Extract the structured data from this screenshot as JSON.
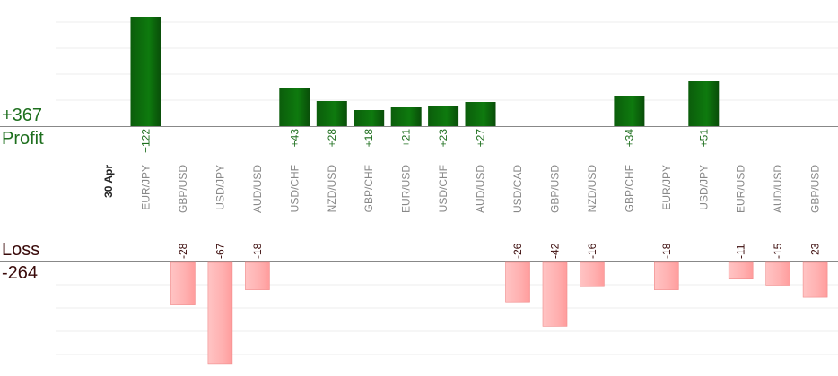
{
  "summary": {
    "profit_total": "+367",
    "profit_label": "Profit",
    "loss_label": "Loss",
    "loss_total": "-264"
  },
  "chart_data": {
    "type": "bar",
    "title": "",
    "date_label": "30 Apr",
    "categories": [
      "EUR/JPY",
      "GBP/USD",
      "USD/JPY",
      "AUD/USD",
      "USD/CHF",
      "NZD/USD",
      "GBP/CHF",
      "EUR/USD",
      "USD/CHF",
      "AUD/USD",
      "USD/CAD",
      "GBP/USD",
      "NZD/USD",
      "GBP/CHF",
      "EUR/JPY",
      "USD/JPY",
      "EUR/USD",
      "AUD/USD",
      "GBP/USD"
    ],
    "values": [
      122,
      -28,
      -67,
      -18,
      43,
      28,
      18,
      21,
      23,
      27,
      -26,
      -42,
      -16,
      34,
      -18,
      51,
      -11,
      -15,
      -23
    ],
    "data_labels": [
      "+122",
      "-28",
      "-67",
      "-18",
      "+43",
      "+28",
      "+18",
      "+21",
      "+23",
      "+27",
      "-26",
      "-42",
      "-16",
      "+34",
      "-18",
      "+51",
      "-11",
      "-15",
      "-23"
    ],
    "profit_color": "#0e6a0e",
    "loss_color": "#ffb6b6",
    "profit_text_color": "#1e6f1e",
    "loss_text_color": "#3a0a0a",
    "grid": true
  }
}
